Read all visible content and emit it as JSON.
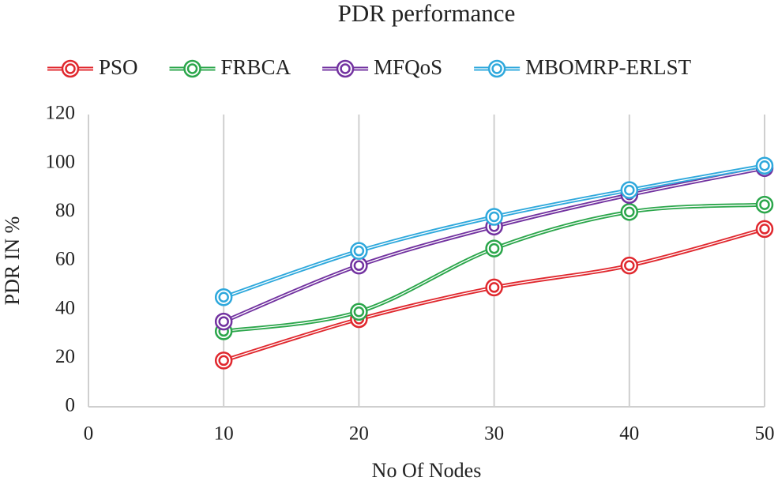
{
  "chart_data": {
    "type": "line",
    "title": "PDR performance",
    "x_label": "No Of Nodes",
    "y_label": "PDR IN %",
    "x": [
      10,
      20,
      30,
      40,
      50
    ],
    "series": [
      {
        "name": "PSO",
        "color": "#e0282e",
        "values": [
          19,
          36,
          49,
          58,
          73
        ]
      },
      {
        "name": "FRBCA",
        "color": "#2ba64b",
        "values": [
          31,
          39,
          65,
          80,
          83
        ]
      },
      {
        "name": "MFQoS",
        "color": "#7232a0",
        "values": [
          35,
          58,
          74,
          87,
          98
        ]
      },
      {
        "name": "MBOMRP-ERLST",
        "color": "#2ea8dc",
        "values": [
          45,
          64,
          78,
          89,
          99
        ]
      }
    ],
    "xlim": [
      0,
      50
    ],
    "xticks": [
      0,
      10,
      20,
      30,
      40,
      50
    ],
    "ylim": [
      0,
      120
    ],
    "yticks": [
      0,
      20,
      40,
      60,
      80,
      100,
      120
    ],
    "grid": "x",
    "legend": "top",
    "smooth": true
  }
}
